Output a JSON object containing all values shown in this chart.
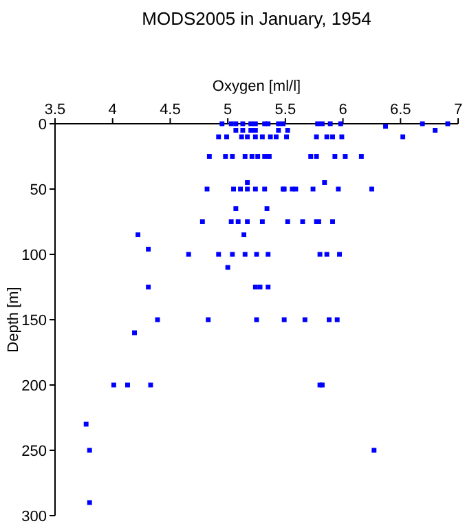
{
  "chart_data": {
    "type": "scatter",
    "title": "MODS2005 in January, 1954",
    "xlabel": "Oxygen [ml/l]",
    "ylabel": "Depth [m]",
    "xlim": [
      3.5,
      7
    ],
    "xticks": [
      3.5,
      4,
      4.5,
      5,
      5.5,
      6,
      6.5,
      7
    ],
    "ylim": [
      300,
      0
    ],
    "yticks": [
      0,
      50,
      100,
      150,
      200,
      250,
      300
    ],
    "grid": false,
    "marker": "square",
    "series": [
      {
        "color": "#0000ff",
        "x": [
          4.95,
          5.03,
          5.07,
          5.13,
          5.2,
          5.24,
          5.32,
          5.35,
          5.44,
          5.48,
          5.78,
          5.82,
          5.89,
          5.98,
          6.37,
          6.69,
          6.91,
          5.07,
          5.13,
          5.2,
          5.24,
          5.44,
          5.52,
          6.8,
          4.92,
          4.99,
          5.12,
          5.17,
          5.24,
          5.3,
          5.37,
          5.42,
          5.51,
          5.77,
          5.86,
          5.91,
          5.99,
          6.52,
          4.84,
          4.98,
          5.04,
          5.15,
          5.21,
          5.26,
          5.32,
          5.36,
          5.72,
          5.77,
          5.93,
          6.02,
          6.16,
          5.17,
          5.84,
          4.82,
          5.05,
          5.11,
          5.17,
          5.24,
          5.32,
          5.48,
          5.49,
          5.56,
          5.59,
          5.74,
          5.96,
          6.25,
          5.07,
          5.34,
          4.78,
          5.03,
          5.09,
          5.17,
          5.3,
          5.52,
          5.65,
          5.77,
          5.79,
          5.91,
          4.22,
          5.14,
          4.31,
          4.66,
          4.92,
          5.04,
          5.15,
          5.25,
          5.35,
          5.8,
          5.86,
          5.97,
          5.0,
          4.31,
          5.24,
          5.28,
          5.35,
          4.39,
          4.83,
          5.25,
          5.49,
          5.67,
          5.88,
          5.95,
          4.19,
          4.01,
          4.13,
          4.33,
          5.8,
          5.82,
          3.77,
          3.8,
          6.27,
          3.8
        ],
        "values": [
          0,
          0,
          0,
          0,
          0,
          0,
          0,
          0,
          0,
          0,
          0,
          0,
          0,
          0,
          2,
          0,
          0,
          5,
          5,
          5,
          5,
          5,
          5,
          5,
          10,
          10,
          10,
          10,
          10,
          10,
          10,
          10,
          10,
          10,
          10,
          10,
          10,
          10,
          25,
          25,
          25,
          25,
          25,
          25,
          25,
          25,
          25,
          25,
          25,
          25,
          25,
          45,
          45,
          50,
          50,
          50,
          50,
          50,
          50,
          50,
          50,
          50,
          50,
          50,
          50,
          50,
          65,
          65,
          75,
          75,
          75,
          75,
          75,
          75,
          75,
          75,
          75,
          75,
          85,
          85,
          96,
          100,
          100,
          100,
          100,
          100,
          100,
          100,
          100,
          100,
          110,
          125,
          125,
          125,
          125,
          150,
          150,
          150,
          150,
          150,
          150,
          150,
          160,
          200,
          200,
          200,
          200,
          200,
          230,
          250,
          250,
          290
        ]
      }
    ]
  }
}
